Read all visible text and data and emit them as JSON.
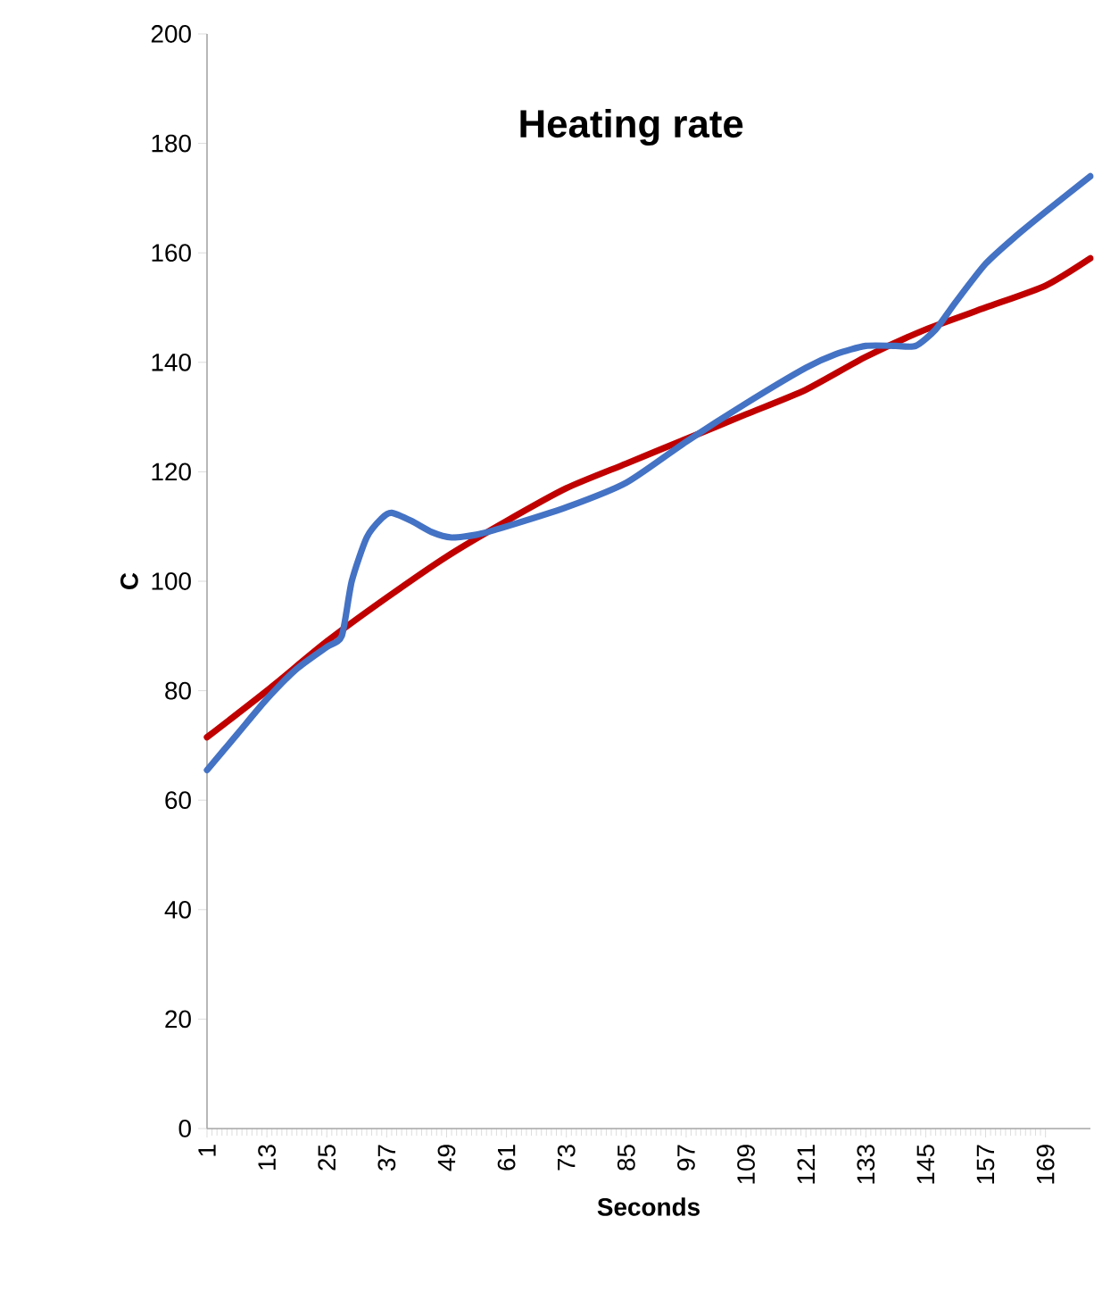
{
  "chart_data": {
    "type": "line",
    "title": "Heating rate",
    "xlabel": "Seconds",
    "ylabel": "C",
    "xlim": [
      1,
      178
    ],
    "xticks": [
      1,
      13,
      25,
      37,
      49,
      61,
      73,
      85,
      97,
      109,
      121,
      133,
      145,
      157,
      169
    ],
    "ylim": [
      0,
      200
    ],
    "yticks": [
      0,
      20,
      40,
      60,
      80,
      100,
      120,
      140,
      160,
      180,
      200
    ],
    "marker": "none",
    "line_style": "solid",
    "series": [
      {
        "color": "#c00000",
        "x": [
          1,
          13,
          25,
          37,
          49,
          61,
          73,
          85,
          97,
          109,
          121,
          133,
          145,
          157,
          169,
          178
        ],
        "values": [
          71.5,
          80,
          89,
          97,
          104.5,
          111,
          117,
          121.5,
          126,
          130.5,
          135,
          141,
          146,
          150,
          154,
          159
        ]
      },
      {
        "color": "#4472c4",
        "x": [
          1,
          7,
          13,
          19,
          25,
          28,
          30,
          33,
          36,
          38,
          42,
          46,
          50,
          55,
          61,
          73,
          85,
          97,
          109,
          121,
          127,
          133,
          139,
          143,
          147,
          151,
          157,
          163,
          169,
          178
        ],
        "values": [
          65.5,
          72,
          78.5,
          84,
          88,
          90,
          100,
          108,
          111.5,
          112.5,
          111,
          109,
          108,
          108.5,
          110,
          113.5,
          118,
          125.5,
          132.5,
          139,
          141.5,
          143,
          143,
          143,
          146,
          151,
          158,
          163,
          167.5,
          174
        ]
      }
    ]
  }
}
